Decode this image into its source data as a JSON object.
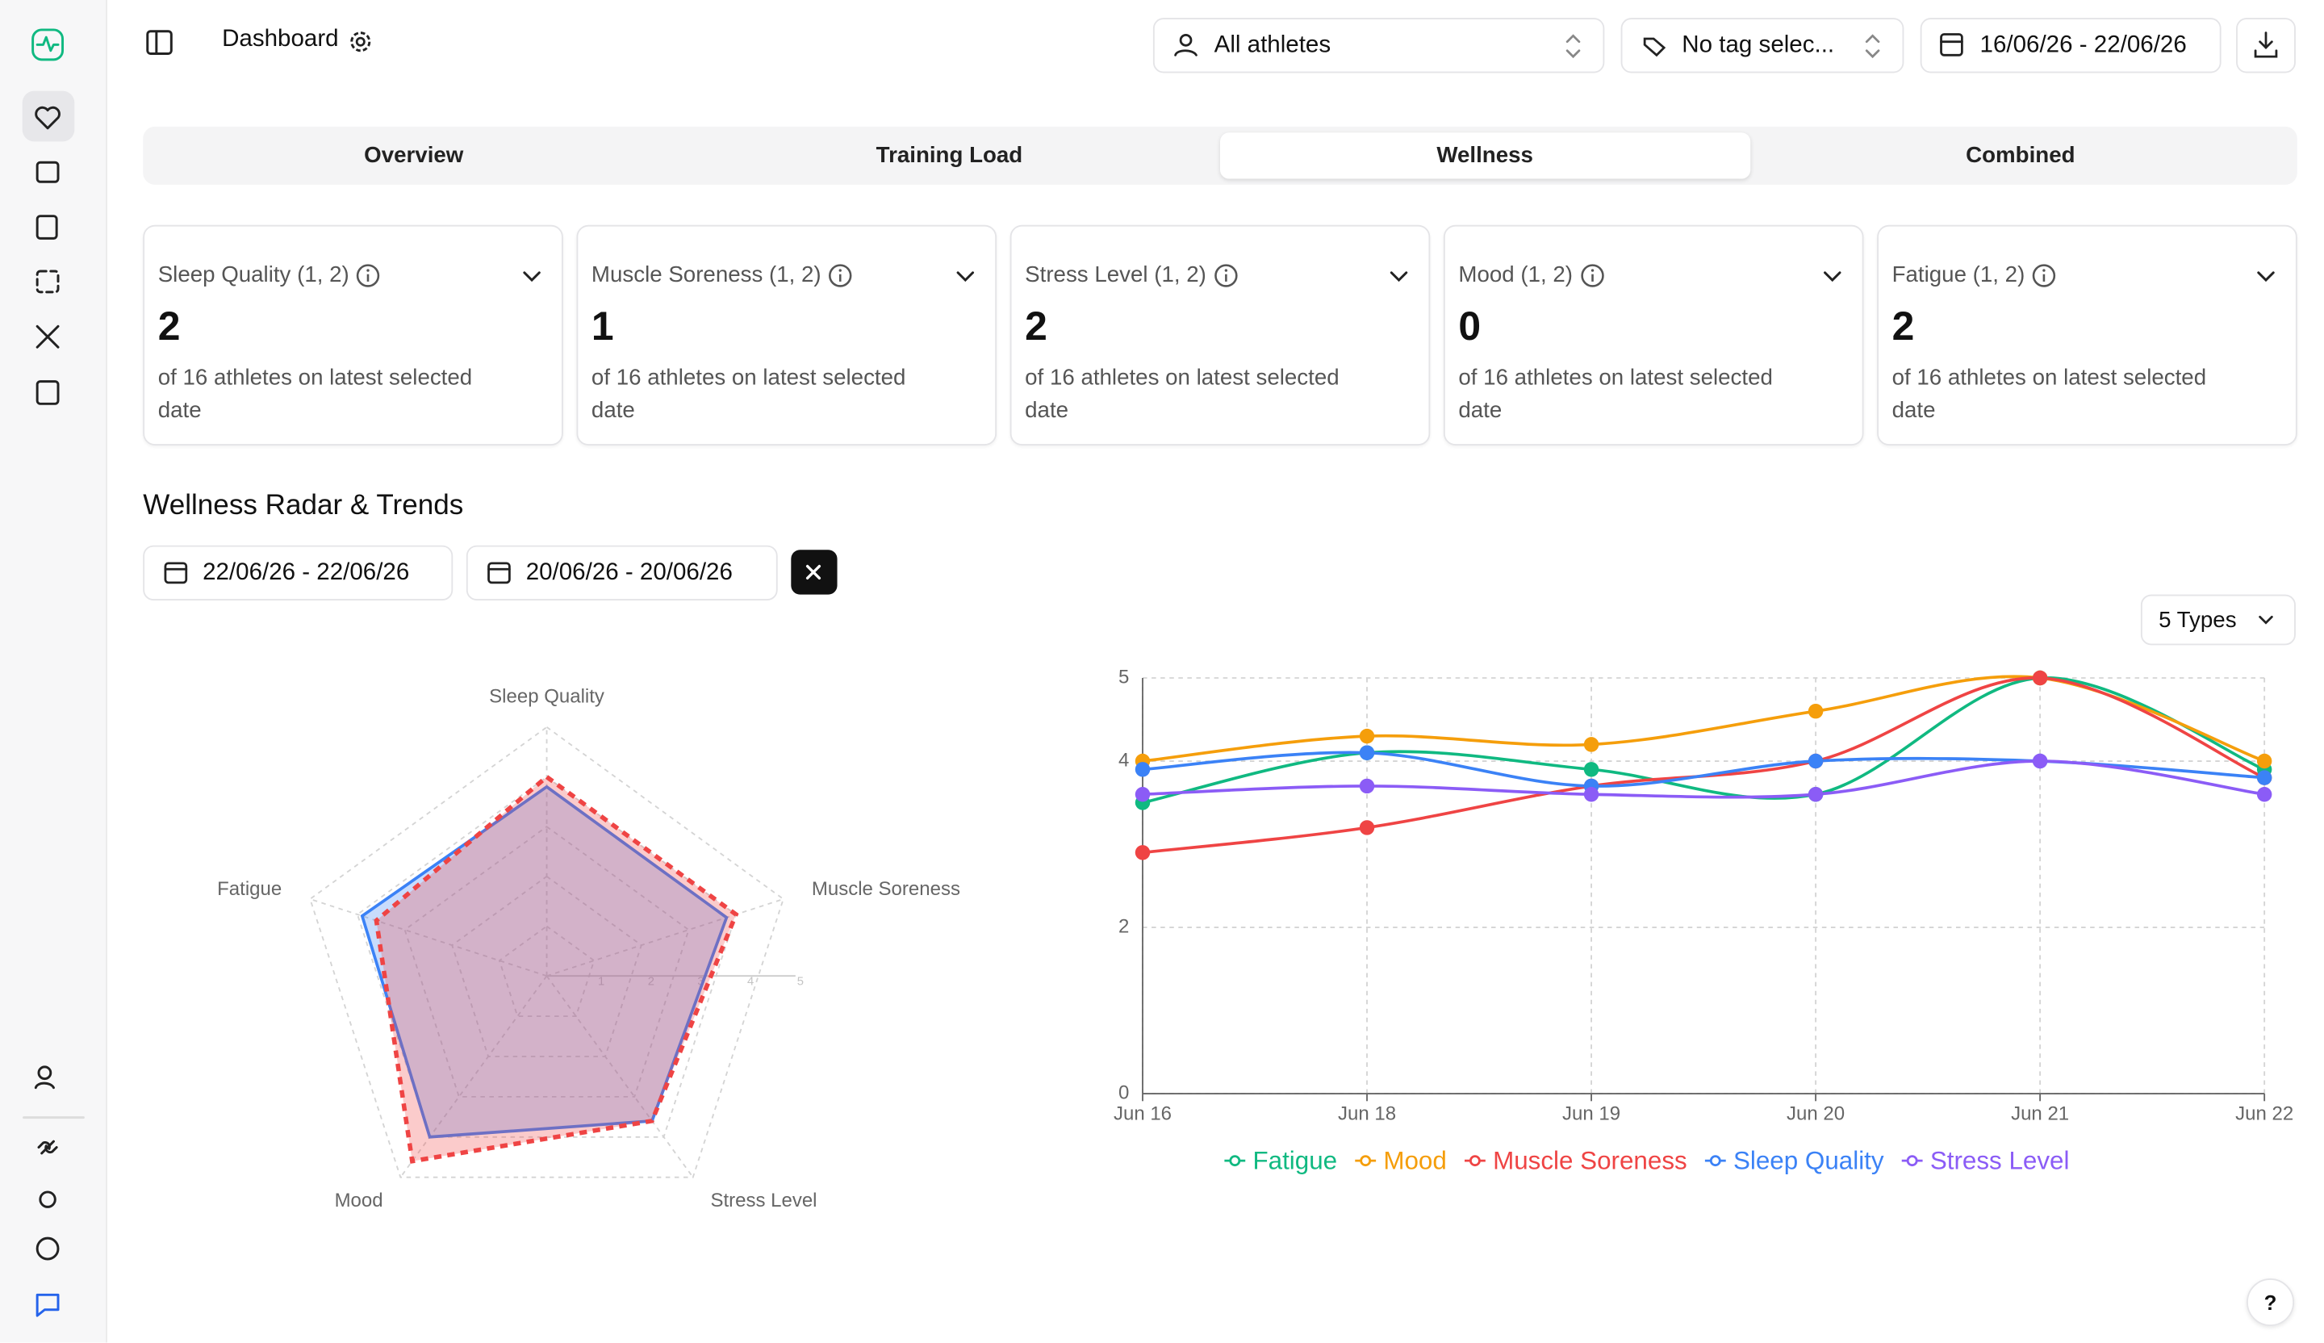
{
  "header": {
    "title": "Dashboard",
    "athletes": "All athletes",
    "tags": "No tag selec...",
    "date_range": "16/06/26 - 22/06/26"
  },
  "tabs": [
    "Overview",
    "Training Load",
    "Wellness",
    "Combined"
  ],
  "active_tab": 2,
  "cards": [
    {
      "title": "Sleep Quality (1, 2)",
      "value": 2,
      "caption": "of 16 athletes on latest selected date"
    },
    {
      "title": "Muscle Soreness (1, 2)",
      "value": 1,
      "caption": "of 16 athletes on latest selected date"
    },
    {
      "title": "Stress Level (1, 2)",
      "value": 2,
      "caption": "of 16 athletes on latest selected date"
    },
    {
      "title": "Mood (1, 2)",
      "value": 0,
      "caption": "of 16 athletes on latest selected date"
    },
    {
      "title": "Fatigue (1, 2)",
      "value": 2,
      "caption": "of 16 athletes on latest selected date"
    }
  ],
  "section": {
    "title": "Wellness Radar & Trends",
    "types": "5 Types"
  },
  "help": "?",
  "chart_data": [
    {
      "type": "radar",
      "axes": [
        "Sleep Quality",
        "Muscle Soreness",
        "Stress Level",
        "Mood",
        "Fatigue"
      ],
      "rlim": [
        0,
        5
      ],
      "rticks": [
        1,
        2,
        3,
        4,
        5
      ],
      "series": [
        {
          "name": "22/06/26 - 22/06/26",
          "color": "#3b82f6",
          "line_style": "solid",
          "values": [
            3.8,
            3.8,
            3.6,
            4.0,
            3.9
          ]
        },
        {
          "name": "20/06/26 - 20/06/26",
          "color": "#ef4444",
          "line_style": "dashed",
          "values": [
            4.0,
            4.0,
            3.6,
            4.6,
            3.6
          ]
        }
      ]
    },
    {
      "type": "line",
      "categories": [
        "Jun 16",
        "Jun 18",
        "Jun 19",
        "Jun 20",
        "Jun 21",
        "Jun 22"
      ],
      "ylim": [
        0,
        5
      ],
      "yticks": [
        0,
        2,
        4,
        5
      ],
      "grid": true,
      "legend": "bottom",
      "series": [
        {
          "name": "Fatigue",
          "color": "#10b981",
          "values": [
            3.5,
            4.1,
            3.9,
            3.6,
            5,
            3.9
          ]
        },
        {
          "name": "Mood",
          "color": "#f59e0b",
          "values": [
            4.0,
            4.3,
            4.2,
            4.6,
            5,
            4.0
          ]
        },
        {
          "name": "Muscle Soreness",
          "color": "#ef4444",
          "values": [
            2.9,
            3.2,
            3.7,
            4.0,
            5,
            3.8
          ]
        },
        {
          "name": "Sleep Quality",
          "color": "#3b82f6",
          "values": [
            3.9,
            4.1,
            3.7,
            4.0,
            4.0,
            3.8
          ]
        },
        {
          "name": "Stress Level",
          "color": "#8b5cf6",
          "values": [
            3.6,
            3.7,
            3.6,
            3.6,
            4.0,
            3.6
          ]
        }
      ]
    }
  ]
}
